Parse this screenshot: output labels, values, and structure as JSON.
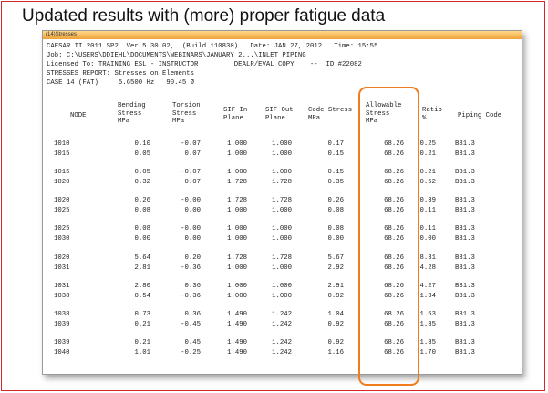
{
  "slide": {
    "title": "Updated results with (more) proper fatigue data",
    "frame_color": "#d8262c",
    "highlight_color": "#f07c1c"
  },
  "window": {
    "title": "(14)Stresses",
    "header_lines": [
      "CAESAR II 2011 SP2  Ver.5.30.02,  (Build 110830)   Date: JAN 27, 2012   Time: 15:55",
      "Job: C:\\USERS\\DDIEHL\\DOCUMENTS\\WEBINARS\\JANUARY 2...\\INLET PIPING",
      "Licensed To: TRAINING ESL - INSTRUCTOR         DEALR/EVAL COPY    --  ID #22082",
      "STRESSES REPORT: Stresses on Elements",
      "CASE 14 (FAT)     5.6500 Hz   90.45 Ø"
    ]
  },
  "table": {
    "columns": [
      {
        "key": "node",
        "label": "NODE"
      },
      {
        "key": "bending",
        "label": "Bending\nStress\nMPa"
      },
      {
        "key": "torsion",
        "label": "Torsion\nStress\nMPa"
      },
      {
        "key": "sif_in",
        "label": "SIF In\nPlane"
      },
      {
        "key": "sif_out",
        "label": "SIF Out\nPlane"
      },
      {
        "key": "code",
        "label": "Code Stress\nMPa"
      },
      {
        "key": "allowable",
        "label": "Allowable\nStress\nMPa"
      },
      {
        "key": "ratio",
        "label": "Ratio\n%"
      },
      {
        "key": "piping_code",
        "label": "Piping Code"
      }
    ],
    "groups": [
      [
        [
          "1010",
          "0.10",
          "-0.07",
          "1.000",
          "1.000",
          "0.17",
          "68.26",
          "0.25",
          "B31.3"
        ],
        [
          "1015",
          "0.05",
          "0.07",
          "1.000",
          "1.000",
          "0.15",
          "68.26",
          "0.21",
          "B31.3"
        ]
      ],
      [
        [
          "1015",
          "0.05",
          "-0.07",
          "1.000",
          "1.000",
          "0.15",
          "68.26",
          "0.21",
          "B31.3"
        ],
        [
          "1020",
          "0.32",
          "0.07",
          "1.728",
          "1.728",
          "0.35",
          "68.26",
          "0.52",
          "B31.3"
        ]
      ],
      [
        [
          "1020",
          "0.26",
          "-0.00",
          "1.728",
          "1.728",
          "0.26",
          "68.26",
          "0.39",
          "B31.3"
        ],
        [
          "1025",
          "0.08",
          "0.00",
          "1.000",
          "1.000",
          "0.08",
          "68.26",
          "0.11",
          "B31.3"
        ]
      ],
      [
        [
          "1025",
          "0.08",
          "-0.00",
          "1.000",
          "1.000",
          "0.08",
          "68.26",
          "0.11",
          "B31.3"
        ],
        [
          "1030",
          "0.00",
          "0.00",
          "1.000",
          "1.000",
          "0.00",
          "68.26",
          "0.00",
          "B31.3"
        ]
      ],
      [
        [
          "1020",
          "5.64",
          "0.20",
          "1.728",
          "1.728",
          "5.67",
          "68.26",
          "8.31",
          "B31.3"
        ],
        [
          "1031",
          "2.81",
          "-0.36",
          "1.000",
          "1.000",
          "2.92",
          "68.26",
          "4.28",
          "B31.3"
        ]
      ],
      [
        [
          "1031",
          "2.80",
          "0.36",
          "1.000",
          "1.000",
          "2.91",
          "68.26",
          "4.27",
          "B31.3"
        ],
        [
          "1038",
          "0.54",
          "-0.36",
          "1.000",
          "1.000",
          "0.92",
          "68.26",
          "1.34",
          "B31.3"
        ]
      ],
      [
        [
          "1038",
          "0.73",
          "0.36",
          "1.490",
          "1.242",
          "1.04",
          "68.26",
          "1.53",
          "B31.3"
        ],
        [
          "1039",
          "0.21",
          "-0.45",
          "1.490",
          "1.242",
          "0.92",
          "68.26",
          "1.35",
          "B31.3"
        ]
      ],
      [
        [
          "1039",
          "0.21",
          "0.45",
          "1.490",
          "1.242",
          "0.92",
          "68.26",
          "1.35",
          "B31.3"
        ],
        [
          "1040",
          "1.01",
          "-0.25",
          "1.490",
          "1.242",
          "1.16",
          "68.26",
          "1.70",
          "B31.3"
        ]
      ]
    ]
  }
}
